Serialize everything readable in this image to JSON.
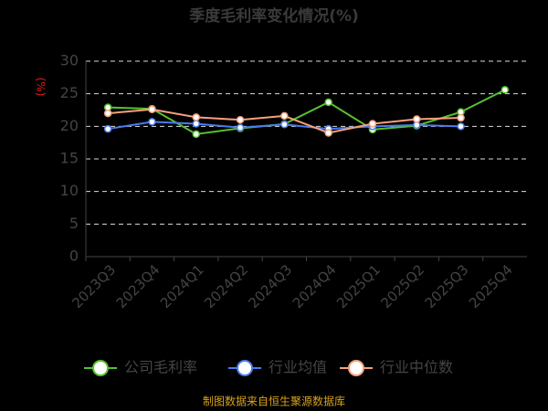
{
  "chart_data": {
    "type": "line",
    "title": "季度毛利率变化情况(%)",
    "y_label": "(%)",
    "categories": [
      "2023Q3",
      "2023Q4",
      "2024Q1",
      "2024Q2",
      "2024Q3",
      "2024Q4",
      "2025Q1",
      "2025Q2",
      "2025Q3",
      "2025Q4"
    ],
    "series": [
      {
        "name": "公司毛利率",
        "color": "#56c12f",
        "values": [
          22.9,
          22.7,
          18.8,
          19.7,
          20.35,
          23.7,
          19.5,
          20.1,
          22.2,
          25.6
        ]
      },
      {
        "name": "行业均值",
        "color": "#4b7bec",
        "values": [
          19.6,
          20.7,
          20.4,
          19.8,
          20.3,
          19.6,
          20.0,
          20.2,
          20.0,
          null
        ]
      },
      {
        "name": "行业中位数",
        "color": "#f7a07c",
        "values": [
          22.0,
          22.6,
          21.4,
          21.0,
          21.6,
          19.0,
          20.4,
          21.1,
          21.3,
          null
        ]
      }
    ],
    "ylim": [
      0,
      30
    ],
    "yticks": [
      0,
      5,
      10,
      15,
      20,
      25,
      30
    ],
    "grid": true,
    "source": "制图数据来自恒生聚源数据库"
  }
}
